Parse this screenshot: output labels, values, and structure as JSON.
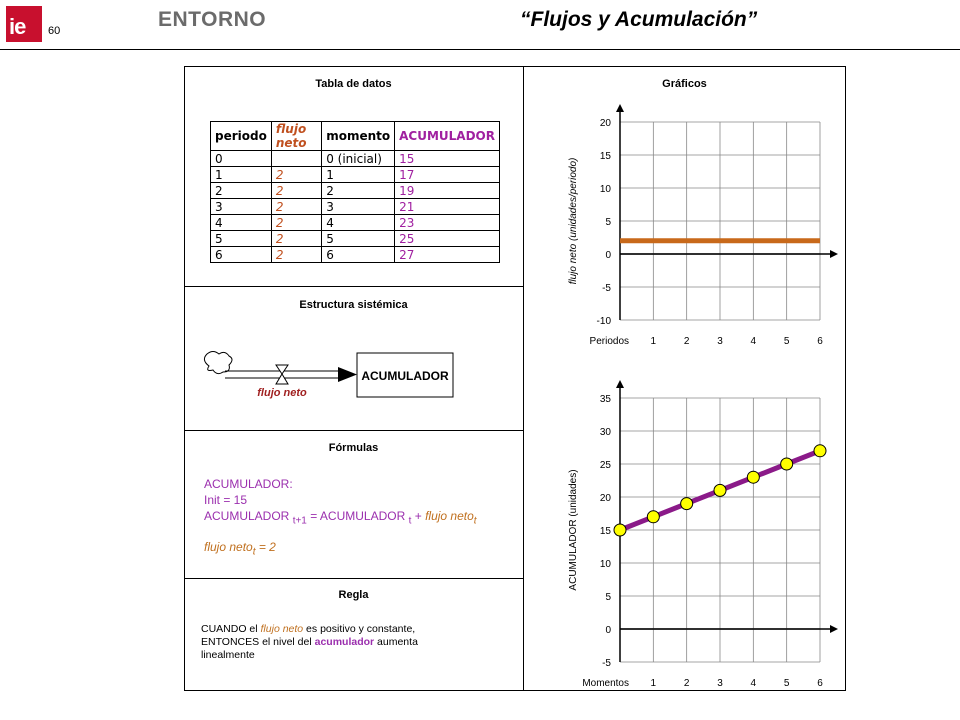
{
  "header": {
    "logo_text": "ie",
    "page_number": "60",
    "section": "ENTORNO",
    "title": "“Flujos y Acumulación”"
  },
  "panels": {
    "data_table": {
      "title": "Tabla de datos",
      "headers": [
        "periodo",
        "flujo neto",
        "momento",
        "ACUMULADOR"
      ],
      "rows": [
        [
          "0",
          "",
          "0 (inicial)",
          "15"
        ],
        [
          "1",
          "2",
          "1",
          "17"
        ],
        [
          "2",
          "2",
          "2",
          "19"
        ],
        [
          "3",
          "2",
          "3",
          "21"
        ],
        [
          "4",
          "2",
          "4",
          "23"
        ],
        [
          "5",
          "2",
          "5",
          "25"
        ],
        [
          "6",
          "2",
          "6",
          "27"
        ]
      ]
    },
    "structure": {
      "title": "Estructura sistémica",
      "flow_label": "flujo neto",
      "stock_label": "ACUMULADOR"
    },
    "formulas": {
      "title": "Fórmulas",
      "line1": "ACUMULADOR:",
      "line2": "Init = 15",
      "line3_a": "ACUMULADOR",
      "line3_sub1": "t+1",
      "line3_b": " = ACUMULADOR",
      "line3_sub2": "t",
      "line3_c": " + ",
      "line3_flow": "flujo neto",
      "line3_sub3": "t",
      "line4_flow": "flujo neto",
      "line4_sub": "t",
      "line4_rest": " = 2"
    },
    "rule": {
      "title": "Regla",
      "p1": "CUANDO el ",
      "p2": "flujo neto",
      "p3": " es positivo y constante,",
      "p4": "ENTONCES el nivel del ",
      "p5": "acumulador",
      "p6": " aumenta",
      "p7": "linealmente"
    },
    "charts_title": "Gráficos"
  },
  "colors": {
    "flow_line": "#c8691a",
    "accumulator_line": "#8b1a89",
    "marker_fill": "#ffff00",
    "logo": "#c8102e"
  },
  "chart_data": [
    {
      "type": "line",
      "ylabel": "flujo neto (unidades/periodo)",
      "xlabel": "Periodos",
      "x": [
        0,
        1,
        2,
        3,
        4,
        5,
        6
      ],
      "xticks": [
        "1",
        "2",
        "3",
        "4",
        "5",
        "6"
      ],
      "yticks": [
        "20",
        "15",
        "10",
        "5",
        "0",
        "-5",
        "-10"
      ],
      "ylim": [
        -10,
        20
      ],
      "series": [
        {
          "values": [
            2,
            2,
            2,
            2,
            2,
            2,
            2
          ]
        }
      ],
      "grid": true
    },
    {
      "type": "line",
      "ylabel": "ACUMULADOR (unidades)",
      "xlabel": "Momentos",
      "x": [
        0,
        1,
        2,
        3,
        4,
        5,
        6
      ],
      "xticks": [
        "1",
        "2",
        "3",
        "4",
        "5",
        "6"
      ],
      "yticks": [
        "35",
        "30",
        "25",
        "20",
        "15",
        "10",
        "5",
        "0",
        "-5"
      ],
      "ylim": [
        -5,
        35
      ],
      "series": [
        {
          "values": [
            15,
            17,
            19,
            21,
            23,
            25,
            27
          ],
          "markers": true
        }
      ],
      "grid": true
    }
  ]
}
